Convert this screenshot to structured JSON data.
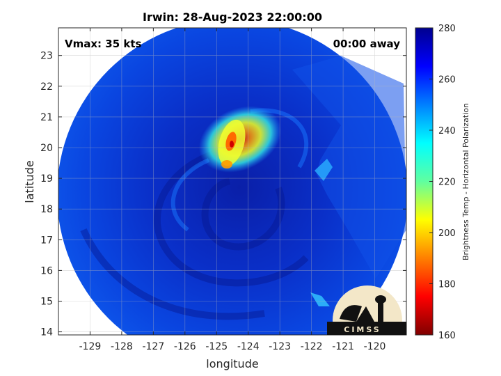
{
  "chart_data": {
    "type": "heatmap",
    "title": "Irwin: 28-Aug-2023 22:00:00",
    "xlabel": "longitude",
    "ylabel": "latitude",
    "xlim": [
      -130,
      -119
    ],
    "ylim": [
      13.9,
      23.9
    ],
    "xticks": [
      -129,
      -128,
      -127,
      -126,
      -125,
      -124,
      -123,
      -122,
      -121,
      -120
    ],
    "yticks": [
      14,
      15,
      16,
      17,
      18,
      19,
      20,
      21,
      22,
      23
    ],
    "grid": true,
    "annotations": {
      "left": "Vmax: 35 kts",
      "right": "00:00 away"
    },
    "colorbar": {
      "label": "Brightness Temp - Horizontal Polarization",
      "range": [
        160,
        280
      ],
      "ticks": [
        160,
        180,
        200,
        220,
        240,
        260,
        280
      ],
      "colormap": "jet"
    },
    "storm_center": {
      "lon": -124.6,
      "lat": 19.8
    },
    "swath": {
      "center_lon": -124.5,
      "center_lat": 18.8,
      "radius_deg": 5.6
    },
    "logo_text": "CIMSS"
  },
  "colors": {
    "background": "#0a3fd8",
    "cold_core": [
      "#ffff20",
      "#ff8000",
      "#d00000"
    ],
    "colormap_stops": [
      "#800000",
      "#ff0000",
      "#ffff00",
      "#00ffff",
      "#0000ff",
      "#00008f"
    ]
  }
}
